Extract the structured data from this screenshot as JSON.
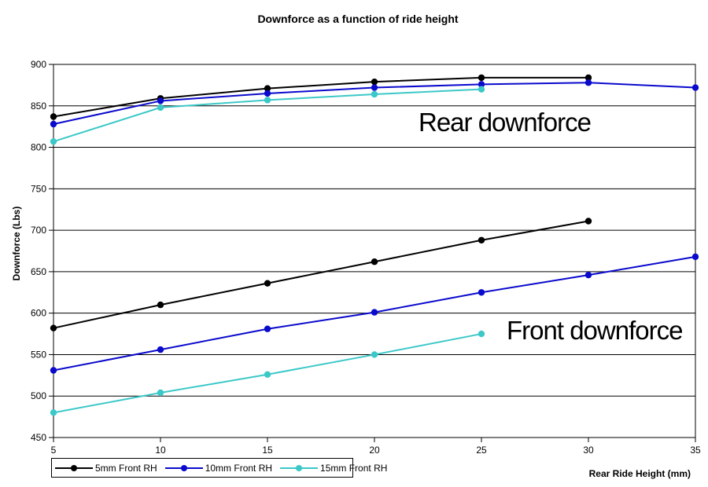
{
  "title": "Downforce as a function of ride height",
  "y_axis_title": "Downforce (Lbs)",
  "x_axis_title": "Rear Ride Height (mm)",
  "annotations": {
    "rear": {
      "text": "Rear downforce"
    },
    "front": {
      "text": "Front downforce"
    }
  },
  "legend": [
    {
      "label": "5mm Front RH",
      "color": "#000000"
    },
    {
      "label": "10mm Front RH",
      "color": "#0a0acd"
    },
    {
      "label": "15mm Front RH",
      "color": "#3cc8c8"
    }
  ],
  "chart_data": {
    "type": "line",
    "title": "Downforce as a function of ride height",
    "xlabel": "Rear Ride Height (mm)",
    "ylabel": "Downforce (Lbs)",
    "xlim": [
      5,
      35
    ],
    "ylim": [
      450,
      900
    ],
    "xticks": [
      5,
      10,
      15,
      20,
      25,
      30,
      35
    ],
    "yticks": [
      450,
      500,
      550,
      600,
      650,
      700,
      750,
      800,
      850,
      900
    ],
    "grid": "horizontal-major",
    "legend_position": "bottom-left",
    "series": [
      {
        "name": "5mm Front RH",
        "group": "rear downforce",
        "color": "#000000",
        "points": [
          [
            5,
            837
          ],
          [
            10,
            859
          ],
          [
            15,
            871
          ],
          [
            20,
            879
          ],
          [
            25,
            884
          ],
          [
            30,
            884
          ]
        ]
      },
      {
        "name": "10mm Front RH",
        "group": "rear downforce",
        "color": "#0a0acd",
        "points": [
          [
            5,
            828
          ],
          [
            10,
            856
          ],
          [
            15,
            865
          ],
          [
            20,
            872
          ],
          [
            25,
            876
          ],
          [
            30,
            878
          ],
          [
            35,
            872
          ]
        ]
      },
      {
        "name": "15mm Front RH",
        "group": "rear downforce",
        "color": "#3cc8c8",
        "points": [
          [
            5,
            807
          ],
          [
            10,
            848
          ],
          [
            15,
            857
          ],
          [
            20,
            864
          ],
          [
            25,
            870
          ]
        ]
      },
      {
        "name": "5mm Front RH",
        "group": "front downforce",
        "color": "#000000",
        "points": [
          [
            5,
            582
          ],
          [
            10,
            610
          ],
          [
            15,
            636
          ],
          [
            20,
            662
          ],
          [
            25,
            688
          ],
          [
            30,
            711
          ]
        ]
      },
      {
        "name": "10mm Front RH",
        "group": "front downforce",
        "color": "#0a0acd",
        "points": [
          [
            5,
            531
          ],
          [
            10,
            556
          ],
          [
            15,
            581
          ],
          [
            20,
            601
          ],
          [
            25,
            625
          ],
          [
            30,
            646
          ],
          [
            35,
            668
          ]
        ]
      },
      {
        "name": "15mm Front RH",
        "group": "front downforce",
        "color": "#3cc8c8",
        "points": [
          [
            5,
            480
          ],
          [
            10,
            504
          ],
          [
            15,
            526
          ],
          [
            20,
            550
          ],
          [
            25,
            575
          ]
        ]
      }
    ]
  }
}
